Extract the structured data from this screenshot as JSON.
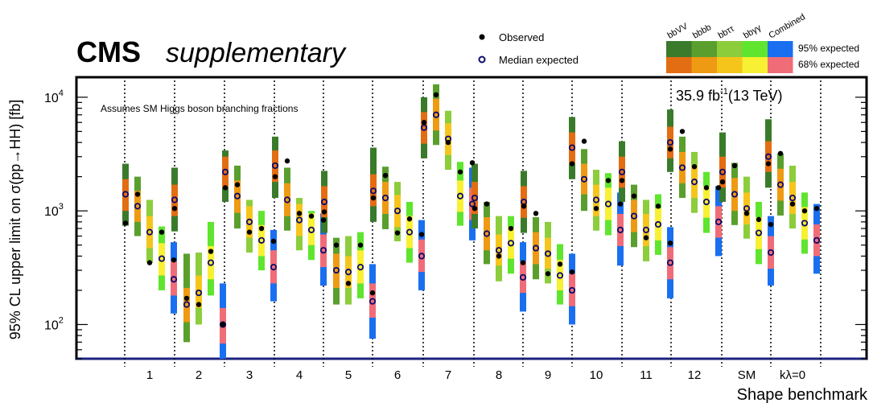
{
  "header": {
    "experiment": "CMS",
    "tag": "supplementary",
    "lumi": "35.9 fb",
    "lumi_sup": "-1",
    "energy": "(13 TeV)",
    "note": "Assumes SM Higgs boson branching fractions"
  },
  "legend": {
    "observed": "Observed",
    "median_expected": "Median expected",
    "band95": "95% expected",
    "band68": "68% expected",
    "channels": [
      "bbVV",
      "bbbb",
      "bbττ",
      "bbγγ",
      "Combined"
    ]
  },
  "colors": {
    "bbVV": {
      "band95": "#3a7b2b",
      "band68": "#e36d12"
    },
    "bbbb": {
      "band95": "#5a9f2d",
      "band68": "#ee9a13"
    },
    "bbtautau": {
      "band95": "#8ccd3c",
      "band68": "#f5c51c"
    },
    "bbgammagamma": {
      "band95": "#5fe52e",
      "band68": "#f8f032"
    },
    "Combined": {
      "band95": "#1a6ff0",
      "band68": "#f06d78"
    },
    "median_marker": "#0b0b6e"
  },
  "chart_data": {
    "type": "scatter",
    "title": "",
    "xlabel": "Shape benchmark",
    "ylabel": "95% CL upper limit on σ(pp→HH) [fb]",
    "yscale": "log",
    "ylim": [
      50,
      15000
    ],
    "yticks": [
      {
        "value": 100,
        "base": "10",
        "exp": "2"
      },
      {
        "value": 1000,
        "base": "10",
        "exp": "3"
      },
      {
        "value": 10000,
        "base": "10",
        "exp": "4"
      }
    ],
    "categories": [
      "1",
      "2",
      "3",
      "4",
      "5",
      "6",
      "7",
      "8",
      "9",
      "10",
      "11",
      "12",
      "SM",
      "kλ=0"
    ],
    "series": [
      "bbVV",
      "bbbb",
      "bbττ",
      "bbγγ",
      "Combined"
    ],
    "benchmarks": [
      {
        "label": "1",
        "limits": [
          {
            "obs": 780,
            "exp": 1400,
            "s68": [
              1000,
              1900
            ],
            "s95": [
              740,
              2600
            ]
          },
          {
            "obs": 1400,
            "exp": 1100,
            "s68": [
              800,
              1500
            ],
            "s95": [
              600,
              2000
            ]
          },
          {
            "obs": 350,
            "exp": 650,
            "s68": [
              470,
              900
            ],
            "s95": [
              350,
              1250
            ]
          },
          {
            "obs": 650,
            "exp": 380,
            "s68": [
              270,
              520
            ],
            "s95": [
              200,
              730
            ]
          },
          {
            "obs": 370,
            "exp": 250,
            "s68": [
              180,
              360
            ],
            "s95": [
              125,
              530
            ]
          }
        ]
      },
      {
        "label": "2",
        "limits": [
          {
            "obs": 1050,
            "exp": 1250,
            "s68": [
              900,
              1700
            ],
            "s95": [
              660,
              2400
            ]
          },
          {
            "obs": 170,
            "exp": 150,
            "s68": [
              105,
              210
            ],
            "s95": [
              70,
              420
            ]
          },
          {
            "obs": 150,
            "exp": 190,
            "s68": [
              140,
              270
            ],
            "s95": [
              100,
              430
            ]
          },
          {
            "obs": 440,
            "exp": 350,
            "s68": [
              250,
              490
            ],
            "s95": [
              180,
              800
            ]
          },
          {
            "obs": 100,
            "exp": 100,
            "s68": [
              68,
              140
            ],
            "s95": [
              50,
              230
            ]
          }
        ]
      },
      {
        "label": "3",
        "limits": [
          {
            "obs": 1600,
            "exp": 2200,
            "s68": [
              1600,
              3000
            ],
            "s95": [
              1200,
              3400
            ]
          },
          {
            "obs": 1700,
            "exp": 1350,
            "s68": [
              960,
              1850
            ],
            "s95": [
              700,
              2500
            ]
          },
          {
            "obs": 650,
            "exp": 800,
            "s68": [
              580,
              1100
            ],
            "s95": [
              430,
              1250
            ]
          },
          {
            "obs": 700,
            "exp": 550,
            "s68": [
              400,
              750
            ],
            "s95": [
              300,
              1000
            ]
          },
          {
            "obs": 540,
            "exp": 320,
            "s68": [
              230,
              450
            ],
            "s95": [
              160,
              680
            ]
          }
        ]
      },
      {
        "label": "4",
        "limits": [
          {
            "obs": 2000,
            "exp": 2500,
            "s68": [
              1800,
              3400
            ],
            "s95": [
              1300,
              4500
            ]
          },
          {
            "obs": 2750,
            "exp": 1250,
            "s68": [
              900,
              1750
            ],
            "s95": [
              670,
              2400
            ]
          },
          {
            "obs": 950,
            "exp": 830,
            "s68": [
              600,
              1150
            ],
            "s95": [
              450,
              1300
            ]
          },
          {
            "obs": 900,
            "exp": 680,
            "s68": [
              500,
              950
            ],
            "s95": [
              370,
              1000
            ]
          },
          {
            "obs": 830,
            "exp": 450,
            "s68": [
              320,
              620
            ],
            "s95": [
              220,
              950
            ]
          }
        ]
      },
      {
        "label": "5",
        "limits": [
          {
            "obs": 980,
            "exp": 1200,
            "s68": [
              880,
              1650
            ],
            "s95": [
              640,
              2250
            ]
          },
          {
            "obs": 500,
            "exp": 300,
            "s68": [
              210,
              420
            ],
            "s95": [
              150,
              580
            ]
          },
          {
            "obs": 230,
            "exp": 290,
            "s68": [
              210,
              400
            ],
            "s95": [
              150,
              600
            ]
          },
          {
            "obs": 500,
            "exp": 320,
            "s68": [
              230,
              450
            ],
            "s95": [
              170,
              650
            ]
          },
          {
            "obs": 190,
            "exp": 160,
            "s68": [
              115,
              230
            ],
            "s95": [
              75,
              340
            ]
          }
        ]
      },
      {
        "label": "6",
        "limits": [
          {
            "obs": 1300,
            "exp": 1500,
            "s68": [
              1100,
              2100
            ],
            "s95": [
              800,
              3600
            ]
          },
          {
            "obs": 2050,
            "exp": 1300,
            "s68": [
              940,
              1800
            ],
            "s95": [
              690,
              2450
            ]
          },
          {
            "obs": 640,
            "exp": 1000,
            "s68": [
              720,
              1380
            ],
            "s95": [
              540,
              1800
            ]
          },
          {
            "obs": 850,
            "exp": 650,
            "s68": [
              470,
              900
            ],
            "s95": [
              350,
              1200
            ]
          },
          {
            "obs": 620,
            "exp": 400,
            "s68": [
              290,
              560
            ],
            "s95": [
              200,
              830
            ]
          }
        ]
      },
      {
        "label": "7",
        "limits": [
          {
            "obs": 6000,
            "exp": 5400,
            "s68": [
              3900,
              7400
            ],
            "s95": [
              2900,
              10000
            ]
          },
          {
            "obs": 10500,
            "exp": 7000,
            "s68": [
              5100,
              9700
            ],
            "s95": [
              3800,
              13000
            ]
          },
          {
            "obs": 4000,
            "exp": 4300,
            "s68": [
              3100,
              5900
            ],
            "s95": [
              2300,
              7600
            ]
          },
          {
            "obs": 2200,
            "exp": 1350,
            "s68": [
              980,
              1850
            ],
            "s95": [
              740,
              2700
            ]
          },
          {
            "obs": 2650,
            "exp": 1150,
            "s68": [
              830,
              1600
            ],
            "s95": [
              550,
              2400
            ]
          }
        ]
      },
      {
        "label": "8",
        "limits": [
          {
            "obs": 1050,
            "exp": 1300,
            "s68": [
              940,
              1800
            ],
            "s95": [
              700,
              2600
            ]
          },
          {
            "obs": 1150,
            "exp": 630,
            "s68": [
              450,
              880
            ],
            "s95": [
              340,
              1200
            ]
          },
          {
            "obs": 400,
            "exp": 450,
            "s68": [
              330,
              620
            ],
            "s95": [
              240,
              900
            ]
          },
          {
            "obs": 700,
            "exp": 520,
            "s68": [
              380,
              720
            ],
            "s95": [
              280,
              900
            ]
          },
          {
            "obs": 350,
            "exp": 260,
            "s68": [
              190,
              360
            ],
            "s95": [
              130,
              530
            ]
          }
        ]
      },
      {
        "label": "9",
        "limits": [
          {
            "obs": 1100,
            "exp": 1200,
            "s68": [
              870,
              1650
            ],
            "s95": [
              640,
              2250
            ]
          },
          {
            "obs": 950,
            "exp": 470,
            "s68": [
              340,
              650
            ],
            "s95": [
              250,
              880
            ]
          },
          {
            "obs": 280,
            "exp": 420,
            "s68": [
              310,
              580
            ],
            "s95": [
              230,
              800
            ]
          },
          {
            "obs": 340,
            "exp": 270,
            "s68": [
              200,
              370
            ],
            "s95": [
              150,
              510
            ]
          },
          {
            "obs": 290,
            "exp": 200,
            "s68": [
              145,
              280
            ],
            "s95": [
              100,
              420
            ]
          }
        ]
      },
      {
        "label": "10",
        "limits": [
          {
            "obs": 2600,
            "exp": 3600,
            "s68": [
              2600,
              4900
            ],
            "s95": [
              1900,
              6700
            ]
          },
          {
            "obs": 4100,
            "exp": 1900,
            "s68": [
              1400,
              2600
            ],
            "s95": [
              1000,
              3500
            ]
          },
          {
            "obs": 1050,
            "exp": 1250,
            "s68": [
              900,
              1700
            ],
            "s95": [
              670,
              2300
            ]
          },
          {
            "obs": 1850,
            "exp": 1150,
            "s68": [
              830,
              1600
            ],
            "s95": [
              610,
              2150
            ]
          },
          {
            "obs": 1150,
            "exp": 680,
            "s68": [
              490,
              940
            ],
            "s95": [
              330,
              1450
            ]
          }
        ]
      },
      {
        "label": "11",
        "limits": [
          {
            "obs": 1850,
            "exp": 2200,
            "s68": [
              1600,
              3000
            ],
            "s95": [
              1200,
              4100
            ]
          },
          {
            "obs": 1350,
            "exp": 900,
            "s68": [
              650,
              1250
            ],
            "s95": [
              480,
              1700
            ]
          },
          {
            "obs": 580,
            "exp": 680,
            "s68": [
              490,
              940
            ],
            "s95": [
              360,
              1250
            ]
          },
          {
            "obs": 1100,
            "exp": 760,
            "s68": [
              550,
              1050
            ],
            "s95": [
              410,
              1400
            ]
          },
          {
            "obs": 520,
            "exp": 350,
            "s68": [
              250,
              480
            ],
            "s95": [
              170,
              720
            ]
          }
        ]
      },
      {
        "label": "12",
        "limits": [
          {
            "obs": 3500,
            "exp": 4000,
            "s68": [
              2900,
              5500
            ],
            "s95": [
              2200,
              7800
            ]
          },
          {
            "obs": 5000,
            "exp": 2400,
            "s68": [
              1750,
              3300
            ],
            "s95": [
              1300,
              4500
            ]
          },
          {
            "obs": 2450,
            "exp": 1800,
            "s68": [
              1300,
              2500
            ],
            "s95": [
              960,
              3300
            ]
          },
          {
            "obs": 1600,
            "exp": 1200,
            "s68": [
              870,
              1650
            ],
            "s95": [
              640,
              2200
            ]
          },
          {
            "obs": 1600,
            "exp": 800,
            "s68": [
              580,
              1100
            ],
            "s95": [
              400,
              1650
            ]
          }
        ]
      },
      {
        "label": "SM",
        "limits": [
          {
            "obs": 1800,
            "exp": 2200,
            "s68": [
              1600,
              3000
            ],
            "s95": [
              1200,
              4900
            ]
          },
          {
            "obs": 2500,
            "exp": 1400,
            "s68": [
              1000,
              1950
            ],
            "s95": [
              750,
              2650
            ]
          },
          {
            "obs": 950,
            "exp": 1050,
            "s68": [
              760,
              1450
            ],
            "s95": [
              570,
              2000
            ]
          },
          {
            "obs": 840,
            "exp": 640,
            "s68": [
              460,
              880
            ],
            "s95": [
              340,
              1200
            ]
          },
          {
            "obs": 760,
            "exp": 430,
            "s68": [
              310,
              600
            ],
            "s95": [
              220,
              900
            ]
          }
        ]
      },
      {
        "label": "kλ=0",
        "limits": [
          {
            "obs": 2600,
            "exp": 3000,
            "s68": [
              2200,
              4100
            ],
            "s95": [
              1600,
              6400
            ]
          },
          {
            "obs": 3200,
            "exp": 1700,
            "s68": [
              1230,
              2350
            ],
            "s95": [
              910,
              3200
            ]
          },
          {
            "obs": 1150,
            "exp": 1300,
            "s68": [
              940,
              1800
            ],
            "s95": [
              700,
              2500
            ]
          },
          {
            "obs": 1000,
            "exp": 780,
            "s68": [
              560,
              1080
            ],
            "s95": [
              420,
              1450
            ]
          },
          {
            "obs": 1050,
            "exp": 550,
            "s68": [
              400,
              760
            ],
            "s95": [
              280,
              1150
            ]
          }
        ]
      }
    ]
  }
}
